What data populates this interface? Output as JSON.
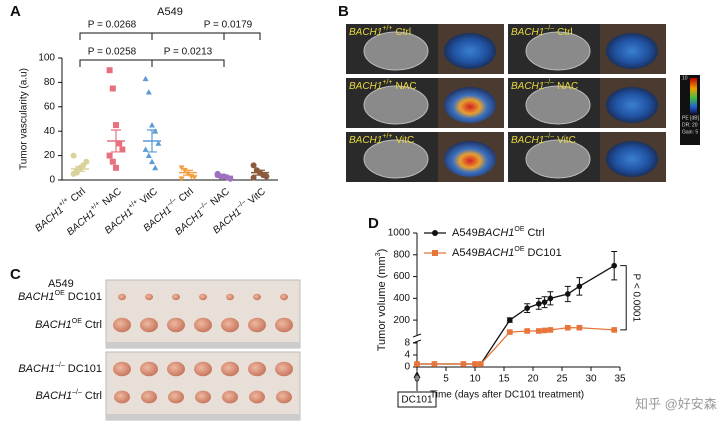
{
  "panel_labels": [
    "A",
    "B",
    "C",
    "D"
  ],
  "chart_data": [
    {
      "type": "dot",
      "title": "A549",
      "ylabel": "Tumor vascularity (a.u)",
      "ylim": [
        0,
        100
      ],
      "yticks": [
        0,
        20,
        40,
        60,
        80,
        100
      ],
      "categories": [
        {
          "gene": "BACH1",
          "sup": "+/+",
          "text": "Ctrl"
        },
        {
          "gene": "BACH1",
          "sup": "+/+",
          "text": "NAC"
        },
        {
          "gene": "BACH1",
          "sup": "+/+",
          "text": "VitC"
        },
        {
          "gene": "BACH1",
          "sup": "–/–",
          "text": "Ctrl"
        },
        {
          "gene": "BACH1",
          "sup": "–/–",
          "text": "NAC"
        },
        {
          "gene": "BACH1",
          "sup": "–/–",
          "text": "VitC"
        }
      ],
      "series": [
        {
          "color": "#d9d29a",
          "marker": "circle",
          "points": [
            5,
            8,
            10,
            12,
            15,
            20,
            6,
            9
          ],
          "mean": 9,
          "sem": 2
        },
        {
          "color": "#e8707e",
          "marker": "square",
          "points": [
            90,
            75,
            45,
            30,
            25,
            20,
            15,
            10
          ],
          "mean": 32,
          "sem": 9
        },
        {
          "color": "#5b9bd5",
          "marker": "triangle",
          "points": [
            83,
            72,
            45,
            40,
            30,
            25,
            20,
            15,
            10
          ],
          "mean": 32,
          "sem": 9
        },
        {
          "color": "#f0a040",
          "marker": "triangle-down",
          "points": [
            10,
            8,
            5,
            3,
            2,
            1
          ],
          "mean": 6,
          "sem": 2
        },
        {
          "color": "#a070c0",
          "marker": "circle",
          "points": [
            4,
            3,
            3,
            2,
            1,
            5
          ],
          "mean": 3,
          "sem": 1
        },
        {
          "color": "#8b5a3c",
          "marker": "circle",
          "points": [
            12,
            8,
            6,
            4,
            3,
            2
          ],
          "mean": 6,
          "sem": 2
        }
      ],
      "annotations": [
        "P = 0.0268",
        "P = 0.0179",
        "P = 0.0258",
        "P = 0.0213"
      ]
    },
    {
      "type": "line",
      "xlabel": "Time (days after DC101 treatment)",
      "ylabel": {
        "text": "Tumor volume (mm",
        "sup": "3",
        "end": ")"
      },
      "xlim": [
        0,
        35
      ],
      "xticks": [
        0,
        5,
        10,
        15,
        20,
        25,
        30,
        35
      ],
      "ylim": [
        0,
        1000
      ],
      "ybreak": [
        8,
        100
      ],
      "yticks": [
        0,
        4,
        8,
        200,
        400,
        600,
        800,
        1000
      ],
      "x": [
        0,
        3,
        8,
        10,
        11,
        16,
        19,
        21,
        22,
        23,
        26,
        28,
        34
      ],
      "series": [
        {
          "name": {
            "pre": "A549",
            "gene": "BACH1",
            "sup": "OE",
            "text": "Ctrl"
          },
          "color": "#111111",
          "marker": "circle",
          "values": [
            1,
            1,
            1,
            1,
            1,
            200,
            310,
            350,
            365,
            400,
            440,
            510,
            700
          ],
          "errors": [
            0,
            0,
            0,
            0,
            0,
            20,
            40,
            50,
            50,
            60,
            70,
            80,
            130
          ]
        },
        {
          "name": {
            "pre": "A549",
            "gene": "BACH1",
            "sup": "OE",
            "text": "DC101"
          },
          "color": "#e8753a",
          "marker": "square",
          "values": [
            1,
            1,
            1,
            1,
            1,
            90,
            100,
            100,
            105,
            110,
            130,
            130,
            110
          ],
          "errors": [
            0,
            0,
            0,
            0,
            0,
            5,
            6,
            6,
            6,
            7,
            8,
            8,
            8
          ]
        }
      ],
      "annotations": [
        "P < 0.0001",
        "DC101"
      ]
    }
  ],
  "panel_b": {
    "labels": [
      {
        "gene": "BACH1",
        "sup": "+/+",
        "text": "Ctrl"
      },
      {
        "gene": "BACH1",
        "sup": "–/–",
        "text": "Ctrl"
      },
      {
        "gene": "BACH1",
        "sup": "+/+",
        "text": "NAC"
      },
      {
        "gene": "BACH1",
        "sup": "–/–",
        "text": "NAC"
      },
      {
        "gene": "BACH1",
        "sup": "+/+",
        "text": "VitC"
      },
      {
        "gene": "BACH1",
        "sup": "–/–",
        "text": "VitC"
      }
    ],
    "colorbar": [
      "10",
      "PE [dB]",
      "DR: 20",
      "Gain: 5"
    ]
  },
  "panel_c": {
    "title": "A549",
    "labels": [
      {
        "gene": "BACH1",
        "sup": "OE",
        "text": "DC101"
      },
      {
        "gene": "BACH1",
        "sup": "OE",
        "text": "Ctrl"
      },
      {
        "gene": "BACH1",
        "sup": "–/–",
        "text": "DC101"
      },
      {
        "gene": "BACH1",
        "sup": "–/–",
        "text": "Ctrl"
      }
    ]
  },
  "watermark": "知乎 @好安森"
}
